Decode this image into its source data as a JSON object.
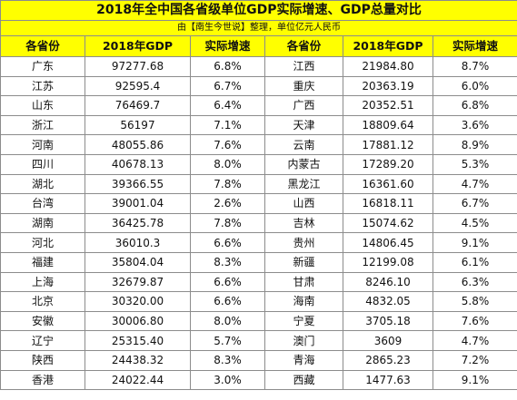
{
  "title": "2018年全中国各省级单位GDP实际增速、GDP总量对比",
  "subtitle": "由【南生今世说】整理，单位亿元人民币",
  "headers": [
    "各省份",
    "2018年GDP",
    "实际增速",
    "各省份",
    "2018年GDP",
    "实际增速"
  ],
  "rows": [
    {
      "left": {
        "province": "广东",
        "gdp": "97277.68",
        "growth": "6.8%"
      },
      "right": {
        "province": "江西",
        "gdp": "21984.80",
        "growth": "8.7%"
      }
    },
    {
      "left": {
        "province": "江苏",
        "gdp": "92595.4",
        "growth": "6.7%"
      },
      "right": {
        "province": "重庆",
        "gdp": "20363.19",
        "growth": "6.0%"
      }
    },
    {
      "left": {
        "province": "山东",
        "gdp": "76469.7",
        "growth": "6.4%"
      },
      "right": {
        "province": "广西",
        "gdp": "20352.51",
        "growth": "6.8%"
      }
    },
    {
      "left": {
        "province": "浙江",
        "gdp": "56197",
        "growth": "7.1%"
      },
      "right": {
        "province": "天津",
        "gdp": "18809.64",
        "growth": "3.6%"
      }
    },
    {
      "left": {
        "province": "河南",
        "gdp": "48055.86",
        "growth": "7.6%"
      },
      "right": {
        "province": "云南",
        "gdp": "17881.12",
        "growth": "8.9%"
      }
    },
    {
      "left": {
        "province": "四川",
        "gdp": "40678.13",
        "growth": "8.0%"
      },
      "right": {
        "province": "内蒙古",
        "gdp": "17289.20",
        "growth": "5.3%"
      }
    },
    {
      "left": {
        "province": "湖北",
        "gdp": "39366.55",
        "growth": "7.8%"
      },
      "right": {
        "province": "黑龙江",
        "gdp": "16361.60",
        "growth": "4.7%"
      }
    },
    {
      "left": {
        "province": "台湾",
        "gdp": "39001.04",
        "growth": "2.6%"
      },
      "right": {
        "province": "山西",
        "gdp": "16818.11",
        "growth": "6.7%"
      }
    },
    {
      "left": {
        "province": "湖南",
        "gdp": "36425.78",
        "growth": "7.8%"
      },
      "right": {
        "province": "吉林",
        "gdp": "15074.62",
        "growth": "4.5%"
      }
    },
    {
      "left": {
        "province": "河北",
        "gdp": "36010.3",
        "growth": "6.6%"
      },
      "right": {
        "province": "贵州",
        "gdp": "14806.45",
        "growth": "9.1%"
      }
    },
    {
      "left": {
        "province": "福建",
        "gdp": "35804.04",
        "growth": "8.3%"
      },
      "right": {
        "province": "新疆",
        "gdp": "12199.08",
        "growth": "6.1%"
      }
    },
    {
      "left": {
        "province": "上海",
        "gdp": "32679.87",
        "growth": "6.6%"
      },
      "right": {
        "province": "甘肃",
        "gdp": "8246.10",
        "growth": "6.3%"
      }
    },
    {
      "left": {
        "province": "北京",
        "gdp": "30320.00",
        "growth": "6.6%"
      },
      "right": {
        "province": "海南",
        "gdp": "4832.05",
        "growth": "5.8%"
      }
    },
    {
      "left": {
        "province": "安徽",
        "gdp": "30006.80",
        "growth": "8.0%"
      },
      "right": {
        "province": "宁夏",
        "gdp": "3705.18",
        "growth": "7.6%"
      }
    },
    {
      "left": {
        "province": "辽宁",
        "gdp": "25315.40",
        "growth": "5.7%"
      },
      "right": {
        "province": "澳门",
        "gdp": "3609",
        "growth": "4.7%"
      }
    },
    {
      "left": {
        "province": "陕西",
        "gdp": "24438.32",
        "growth": "8.3%"
      },
      "right": {
        "province": "青海",
        "gdp": "2865.23",
        "growth": "7.2%"
      }
    },
    {
      "left": {
        "province": "香港",
        "gdp": "24022.44",
        "growth": "3.0%"
      },
      "right": {
        "province": "西藏",
        "gdp": "1477.63",
        "growth": "9.1%"
      }
    }
  ]
}
